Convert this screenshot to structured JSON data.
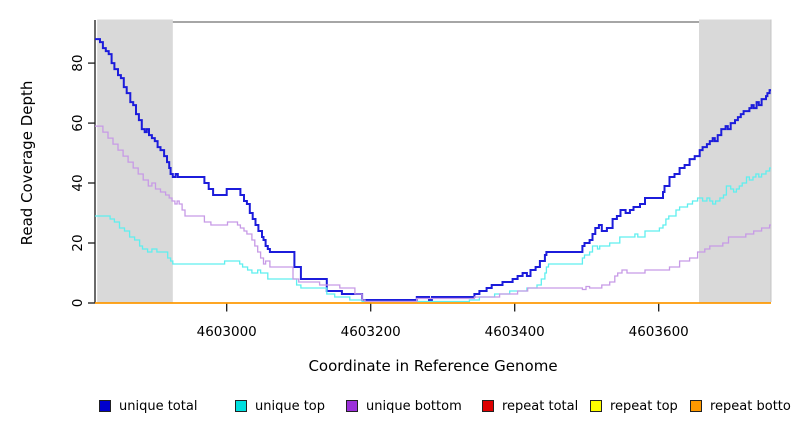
{
  "figure": {
    "background": "#ffffff"
  },
  "chart_data": {
    "type": "line",
    "title": "",
    "xlabel": "Coordinate in Reference Genome",
    "ylabel": "Read Coverage Depth",
    "xlim": [
      4602817,
      4603756
    ],
    "ylim": [
      0,
      93.7
    ],
    "x_ticks": [
      4603000,
      4603200,
      4603400,
      4603600
    ],
    "y_ticks": [
      0,
      20,
      40,
      60,
      80
    ],
    "grid": false,
    "legend_position": "bottom",
    "step_interpolation": true,
    "axis_color": "#1a1a1a",
    "border_top_color": "#888888",
    "shaded_regions": [
      {
        "x_start": 4602820,
        "x_end": 4602925,
        "color": "#d9d9d9"
      },
      {
        "x_start": 4603656,
        "x_end": 4603756,
        "color": "#d9d9d9"
      }
    ],
    "series": [
      {
        "name": "unique total",
        "legend_color": "#0000cd",
        "line_color": "#1c1cdb",
        "line_width": 2,
        "points": [
          [
            4602817,
            88
          ],
          [
            4602824,
            87
          ],
          [
            4602828,
            85
          ],
          [
            4602832,
            84
          ],
          [
            4602836,
            83
          ],
          [
            4602840,
            80
          ],
          [
            4602844,
            78
          ],
          [
            4602849,
            76
          ],
          [
            4602853,
            75
          ],
          [
            4602857,
            72
          ],
          [
            4602861,
            70
          ],
          [
            4602866,
            67
          ],
          [
            4602870,
            66
          ],
          [
            4602874,
            63
          ],
          [
            4602878,
            61
          ],
          [
            4602882,
            58
          ],
          [
            4602886,
            57
          ],
          [
            4602889,
            58
          ],
          [
            4602892,
            56
          ],
          [
            4602896,
            55
          ],
          [
            4602900,
            54
          ],
          [
            4602904,
            52
          ],
          [
            4602908,
            51
          ],
          [
            4602913,
            49
          ],
          [
            4602917,
            47
          ],
          [
            4602920,
            45
          ],
          [
            4602922,
            43
          ],
          [
            4602925,
            42
          ],
          [
            4602929,
            43
          ],
          [
            4602932,
            42
          ],
          [
            4602969,
            40
          ],
          [
            4602975,
            38
          ],
          [
            4602981,
            36
          ],
          [
            4603000,
            38
          ],
          [
            4603019,
            36
          ],
          [
            4603024,
            34
          ],
          [
            4603028,
            33
          ],
          [
            4603032,
            30
          ],
          [
            4603036,
            28
          ],
          [
            4603040,
            26
          ],
          [
            4603044,
            24
          ],
          [
            4603049,
            22
          ],
          [
            4603051,
            21
          ],
          [
            4603054,
            19
          ],
          [
            4603057,
            18
          ],
          [
            4603060,
            17
          ],
          [
            4603094,
            12
          ],
          [
            4603103,
            8
          ],
          [
            4603139,
            4
          ],
          [
            4603160,
            3
          ],
          [
            4603188,
            1
          ],
          [
            4603264,
            2
          ],
          [
            4603281,
            1
          ],
          [
            4603285,
            2
          ],
          [
            4603344,
            3
          ],
          [
            4603351,
            4
          ],
          [
            4603361,
            5
          ],
          [
            4603368,
            6
          ],
          [
            4603383,
            7
          ],
          [
            4603397,
            8
          ],
          [
            4603404,
            9
          ],
          [
            4603411,
            10
          ],
          [
            4603417,
            9
          ],
          [
            4603422,
            11
          ],
          [
            4603429,
            12
          ],
          [
            4603435,
            14
          ],
          [
            4603442,
            16
          ],
          [
            4603444,
            17
          ],
          [
            4603494,
            19
          ],
          [
            4603497,
            20
          ],
          [
            4603504,
            21
          ],
          [
            4603508,
            23
          ],
          [
            4603512,
            25
          ],
          [
            4603517,
            26
          ],
          [
            4603521,
            24
          ],
          [
            4603528,
            25
          ],
          [
            4603536,
            28
          ],
          [
            4603542,
            29
          ],
          [
            4603547,
            31
          ],
          [
            4603554,
            30
          ],
          [
            4603560,
            31
          ],
          [
            4603565,
            32
          ],
          [
            4603574,
            33
          ],
          [
            4603581,
            35
          ],
          [
            4603606,
            37
          ],
          [
            4603608,
            39
          ],
          [
            4603615,
            42
          ],
          [
            4603622,
            43
          ],
          [
            4603629,
            45
          ],
          [
            4603636,
            46
          ],
          [
            4603643,
            48
          ],
          [
            4603650,
            49
          ],
          [
            4603657,
            51
          ],
          [
            4603661,
            52
          ],
          [
            4603667,
            53
          ],
          [
            4603671,
            54
          ],
          [
            4603675,
            55
          ],
          [
            4603678,
            54
          ],
          [
            4603682,
            56
          ],
          [
            4603687,
            58
          ],
          [
            4603693,
            59
          ],
          [
            4603696,
            58
          ],
          [
            4603700,
            60
          ],
          [
            4603706,
            61
          ],
          [
            4603710,
            62
          ],
          [
            4603714,
            63
          ],
          [
            4603718,
            64
          ],
          [
            4603722,
            64
          ],
          [
            4603726,
            65
          ],
          [
            4603729,
            66
          ],
          [
            4603732,
            65
          ],
          [
            4603736,
            67
          ],
          [
            4603739,
            66
          ],
          [
            4603743,
            68
          ],
          [
            4603749,
            69
          ],
          [
            4603751,
            70
          ],
          [
            4603754,
            71
          ]
        ]
      },
      {
        "name": "unique top",
        "legend_color": "#00dfdf",
        "line_color": "#5fefef",
        "line_width": 1.3,
        "points": [
          [
            4602817,
            29
          ],
          [
            4602838,
            28
          ],
          [
            4602844,
            27
          ],
          [
            4602851,
            25
          ],
          [
            4602858,
            24
          ],
          [
            4602865,
            22
          ],
          [
            4602872,
            21
          ],
          [
            4602879,
            19
          ],
          [
            4602883,
            18
          ],
          [
            4602890,
            17
          ],
          [
            4602896,
            18
          ],
          [
            4602903,
            17
          ],
          [
            4602918,
            15
          ],
          [
            4602922,
            14
          ],
          [
            4602925,
            13
          ],
          [
            4602997,
            14
          ],
          [
            4603018,
            13
          ],
          [
            4603022,
            12
          ],
          [
            4603029,
            11
          ],
          [
            4603035,
            10
          ],
          [
            4603043,
            11
          ],
          [
            4603047,
            10
          ],
          [
            4603057,
            8
          ],
          [
            4603097,
            6
          ],
          [
            4603103,
            5
          ],
          [
            4603139,
            3
          ],
          [
            4603150,
            2
          ],
          [
            4603171,
            1
          ],
          [
            4603188,
            0.5
          ],
          [
            4603337,
            1
          ],
          [
            4603351,
            2
          ],
          [
            4603372,
            3
          ],
          [
            4603393,
            4
          ],
          [
            4603417,
            5
          ],
          [
            4603431,
            6
          ],
          [
            4603437,
            8
          ],
          [
            4603442,
            10
          ],
          [
            4603444,
            12
          ],
          [
            4603447,
            13
          ],
          [
            4603494,
            15
          ],
          [
            4603497,
            16
          ],
          [
            4603504,
            17
          ],
          [
            4603508,
            19
          ],
          [
            4603515,
            18
          ],
          [
            4603518,
            19
          ],
          [
            4603532,
            20
          ],
          [
            4603546,
            22
          ],
          [
            4603567,
            23
          ],
          [
            4603571,
            22
          ],
          [
            4603581,
            24
          ],
          [
            4603601,
            25
          ],
          [
            4603606,
            26
          ],
          [
            4603610,
            28
          ],
          [
            4603614,
            29
          ],
          [
            4603624,
            31
          ],
          [
            4603629,
            32
          ],
          [
            4603640,
            33
          ],
          [
            4603647,
            34
          ],
          [
            4603654,
            35
          ],
          [
            4603661,
            34
          ],
          [
            4603667,
            35
          ],
          [
            4603671,
            34
          ],
          [
            4603675,
            33
          ],
          [
            4603679,
            34
          ],
          [
            4603685,
            35
          ],
          [
            4603690,
            36
          ],
          [
            4603694,
            39
          ],
          [
            4603700,
            38
          ],
          [
            4603704,
            37
          ],
          [
            4603708,
            38
          ],
          [
            4603712,
            39
          ],
          [
            4603716,
            40
          ],
          [
            4603722,
            42
          ],
          [
            4603726,
            41
          ],
          [
            4603731,
            42
          ],
          [
            4603735,
            43
          ],
          [
            4603739,
            42
          ],
          [
            4603743,
            43
          ],
          [
            4603749,
            44
          ],
          [
            4603754,
            45
          ]
        ]
      },
      {
        "name": "unique bottom",
        "legend_color": "#9b30d9",
        "line_color": "#c79ae6",
        "line_width": 1.3,
        "points": [
          [
            4602817,
            59
          ],
          [
            4602828,
            57
          ],
          [
            4602835,
            55
          ],
          [
            4602842,
            53
          ],
          [
            4602849,
            51
          ],
          [
            4602856,
            49
          ],
          [
            4602863,
            47
          ],
          [
            4602870,
            45
          ],
          [
            4602877,
            43
          ],
          [
            4602884,
            41
          ],
          [
            4602891,
            39
          ],
          [
            4602896,
            40
          ],
          [
            4602901,
            38
          ],
          [
            4602908,
            37
          ],
          [
            4602915,
            36
          ],
          [
            4602920,
            35
          ],
          [
            4602924,
            34
          ],
          [
            4602928,
            33
          ],
          [
            4602931,
            34
          ],
          [
            4602934,
            33
          ],
          [
            4602938,
            31
          ],
          [
            4602942,
            29
          ],
          [
            4602969,
            27
          ],
          [
            4602978,
            26
          ],
          [
            4603001,
            27
          ],
          [
            4603015,
            26
          ],
          [
            4603019,
            25
          ],
          [
            4603024,
            24
          ],
          [
            4603028,
            23
          ],
          [
            4603035,
            21
          ],
          [
            4603039,
            19
          ],
          [
            4603043,
            17
          ],
          [
            4603047,
            15
          ],
          [
            4603051,
            13
          ],
          [
            4603054,
            14
          ],
          [
            4603060,
            12
          ],
          [
            4603092,
            8
          ],
          [
            4603100,
            7
          ],
          [
            4603129,
            6
          ],
          [
            4603157,
            5
          ],
          [
            4603178,
            3
          ],
          [
            4603188,
            1
          ],
          [
            4603192,
            0.5
          ],
          [
            4603264,
            1.5
          ],
          [
            4603344,
            2
          ],
          [
            4603379,
            3
          ],
          [
            4603404,
            4
          ],
          [
            4603418,
            5
          ],
          [
            4603494,
            4.5
          ],
          [
            4603499,
            5.5
          ],
          [
            4603504,
            5
          ],
          [
            4603521,
            6
          ],
          [
            4603532,
            7
          ],
          [
            4603539,
            9
          ],
          [
            4603543,
            10
          ],
          [
            4603549,
            11
          ],
          [
            4603556,
            10
          ],
          [
            4603581,
            11
          ],
          [
            4603615,
            12
          ],
          [
            4603629,
            14
          ],
          [
            4603643,
            15
          ],
          [
            4603654,
            17
          ],
          [
            4603664,
            18
          ],
          [
            4603671,
            19
          ],
          [
            4603689,
            20
          ],
          [
            4603697,
            22
          ],
          [
            4603721,
            23
          ],
          [
            4603732,
            24
          ],
          [
            4603743,
            25
          ],
          [
            4603754,
            26
          ]
        ]
      },
      {
        "name": "repeat total",
        "legend_color": "#dd0000",
        "line_color": "#dd0000",
        "line_width": 1.3,
        "points": [
          [
            4602817,
            0
          ],
          [
            4603756,
            0
          ]
        ]
      },
      {
        "name": "repeat top",
        "legend_color": "#ffff00",
        "line_color": "#ffff00",
        "line_width": 1.3,
        "points": [
          [
            4602817,
            0
          ],
          [
            4603756,
            0
          ]
        ]
      },
      {
        "name": "repeat bottom",
        "legend_color": "#ff9900",
        "line_color": "#ff9900",
        "line_width": 1.6,
        "points": [
          [
            4602817,
            0
          ],
          [
            4603756,
            0
          ]
        ]
      }
    ]
  }
}
